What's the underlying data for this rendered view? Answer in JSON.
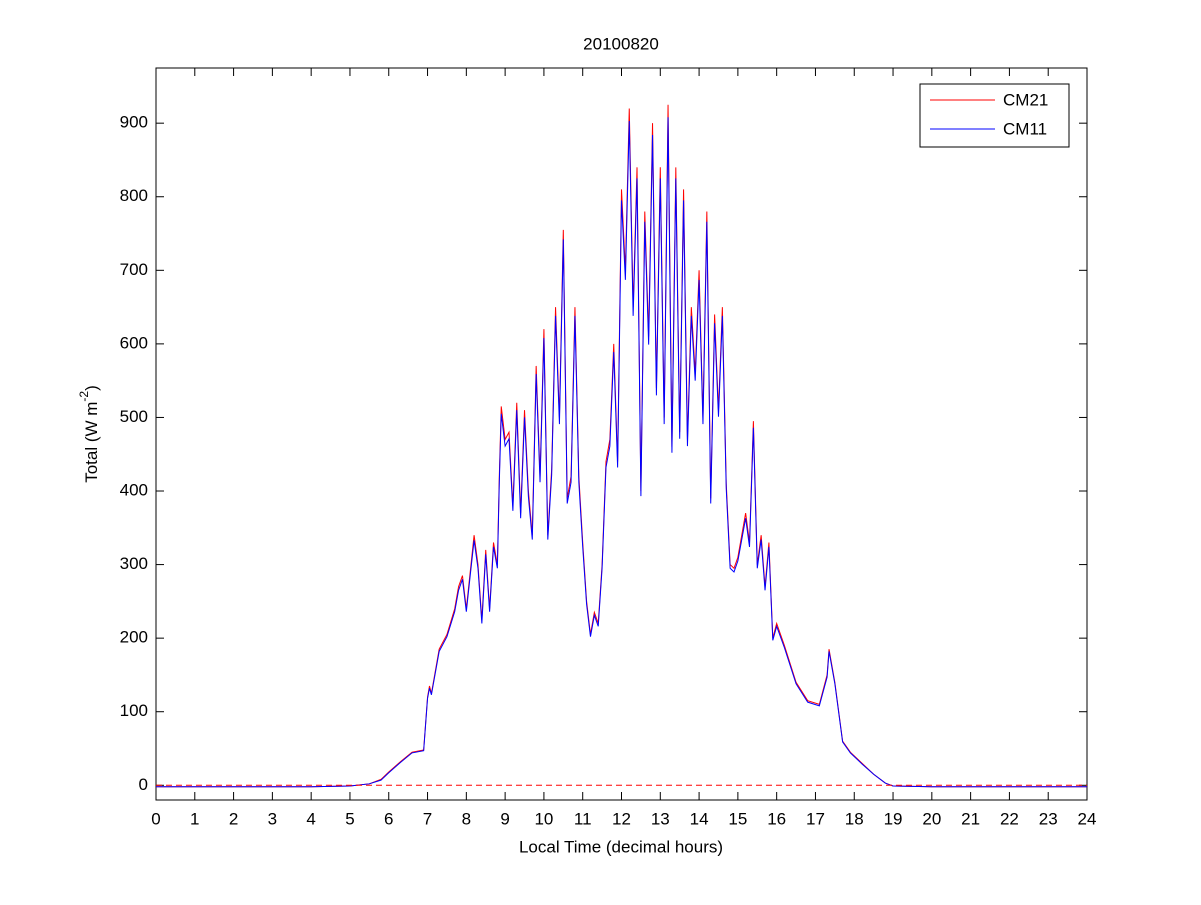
{
  "chart_data": {
    "type": "line",
    "title": "20100820",
    "xlabel": "Local Time (decimal hours)",
    "ylabel": [
      "Total (W m",
      "-2",
      ")"
    ],
    "x": [
      0,
      1,
      2,
      3,
      4,
      5,
      5.5,
      5.8,
      6.0,
      6.3,
      6.6,
      6.9,
      7.0,
      7.05,
      7.1,
      7.3,
      7.5,
      7.7,
      7.8,
      7.9,
      8.0,
      8.1,
      8.2,
      8.3,
      8.4,
      8.5,
      8.6,
      8.7,
      8.8,
      8.85,
      8.9,
      9.0,
      9.1,
      9.2,
      9.3,
      9.4,
      9.5,
      9.6,
      9.7,
      9.8,
      9.9,
      10.0,
      10.1,
      10.2,
      10.3,
      10.4,
      10.5,
      10.6,
      10.7,
      10.8,
      10.9,
      11.0,
      11.1,
      11.2,
      11.3,
      11.4,
      11.5,
      11.6,
      11.7,
      11.8,
      11.9,
      12.0,
      12.1,
      12.2,
      12.3,
      12.4,
      12.5,
      12.6,
      12.7,
      12.8,
      12.9,
      13.0,
      13.1,
      13.2,
      13.3,
      13.4,
      13.5,
      13.6,
      13.7,
      13.8,
      13.9,
      14.0,
      14.1,
      14.2,
      14.3,
      14.4,
      14.5,
      14.6,
      14.7,
      14.8,
      14.9,
      15.0,
      15.2,
      15.3,
      15.4,
      15.5,
      15.6,
      15.7,
      15.8,
      15.9,
      16.0,
      16.2,
      16.5,
      16.8,
      17.1,
      17.3,
      17.35,
      17.5,
      17.7,
      17.9,
      18.2,
      18.5,
      18.8,
      19.0,
      20,
      21,
      22,
      23,
      24
    ],
    "series": [
      {
        "name": "CM21",
        "color": "#ff0000",
        "values": [
          -2,
          -2,
          -2,
          -2,
          -2,
          -1,
          2,
          8,
          18,
          32,
          45,
          48,
          120,
          135,
          125,
          185,
          205,
          240,
          270,
          285,
          240,
          290,
          340,
          300,
          225,
          320,
          240,
          330,
          300,
          420,
          515,
          470,
          480,
          380,
          520,
          370,
          510,
          400,
          340,
          570,
          420,
          620,
          340,
          430,
          650,
          500,
          755,
          390,
          420,
          650,
          420,
          330,
          250,
          205,
          235,
          220,
          300,
          440,
          470,
          600,
          440,
          810,
          700,
          920,
          650,
          840,
          400,
          780,
          610,
          900,
          540,
          840,
          500,
          925,
          460,
          840,
          480,
          810,
          470,
          650,
          560,
          700,
          500,
          780,
          390,
          640,
          510,
          650,
          410,
          300,
          295,
          310,
          370,
          330,
          495,
          300,
          340,
          270,
          330,
          200,
          220,
          190,
          140,
          115,
          110,
          150,
          185,
          140,
          60,
          45,
          30,
          15,
          3,
          -1,
          -2,
          -2,
          -2,
          -2,
          -2
        ]
      },
      {
        "name": "CM11",
        "color": "#0000ff",
        "values": [
          -2,
          -2,
          -2,
          -2,
          -2,
          -1,
          2,
          7,
          17,
          31,
          44,
          47,
          118,
          132,
          123,
          182,
          202,
          236,
          265,
          280,
          236,
          285,
          333,
          295,
          220,
          314,
          236,
          324,
          295,
          412,
          505,
          461,
          471,
          373,
          510,
          363,
          500,
          392,
          334,
          559,
          412,
          608,
          334,
          422,
          638,
          491,
          742,
          383,
          412,
          638,
          412,
          324,
          246,
          202,
          231,
          216,
          295,
          432,
          461,
          589,
          432,
          795,
          687,
          903,
          638,
          825,
          393,
          766,
          599,
          884,
          530,
          825,
          491,
          908,
          452,
          825,
          471,
          795,
          461,
          638,
          550,
          687,
          491,
          766,
          383,
          628,
          501,
          638,
          403,
          295,
          290,
          305,
          363,
          324,
          486,
          295,
          334,
          265,
          324,
          197,
          216,
          187,
          138,
          113,
          108,
          147,
          182,
          138,
          59,
          44,
          29,
          15,
          3,
          -1,
          -2,
          -2,
          -2,
          -2,
          -2
        ]
      }
    ],
    "hline": {
      "value": 0,
      "color": "#ff0000"
    },
    "xlim": [
      0,
      24
    ],
    "xticks": [
      0,
      1,
      2,
      3,
      4,
      5,
      6,
      7,
      8,
      9,
      10,
      11,
      12,
      13,
      14,
      15,
      16,
      17,
      18,
      19,
      20,
      21,
      22,
      23,
      24
    ],
    "ylim": [
      -20,
      975
    ],
    "yticks": [
      0,
      100,
      200,
      300,
      400,
      500,
      600,
      700,
      800,
      900
    ],
    "legend": "upper right",
    "grid": false
  }
}
